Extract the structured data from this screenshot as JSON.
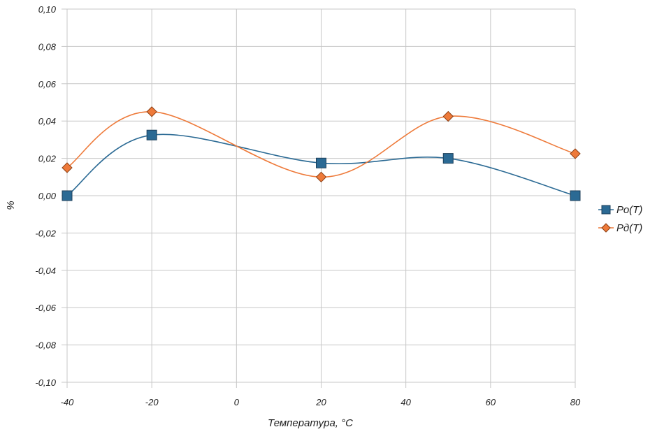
{
  "chart_data": {
    "type": "line",
    "xlabel": "Температура, °C",
    "ylabel": "%",
    "xlim": [
      -40,
      80
    ],
    "ylim": [
      -0.1,
      0.1
    ],
    "x_ticks": [
      -40,
      -20,
      0,
      20,
      40,
      60,
      80
    ],
    "x_tick_labels": [
      "-40",
      "-20",
      "0",
      "20",
      "40",
      "60",
      "80"
    ],
    "y_ticks": [
      0.1,
      0.08,
      0.06,
      0.04,
      0.02,
      0.0,
      -0.02,
      -0.04,
      -0.06,
      -0.08,
      -0.1
    ],
    "y_tick_labels": [
      "0,10",
      "0,08",
      "0,06",
      "0,04",
      "0,02",
      "0,00",
      "-0,02",
      "-0,04",
      "-0,06",
      "-0,08",
      "-0,10"
    ],
    "grid": true,
    "legend_position": "right",
    "smooth": true,
    "series": [
      {
        "name": "Ро(T)",
        "color": "#2b6a94",
        "marker": "square",
        "x": [
          -40,
          -20,
          20,
          50,
          80
        ],
        "y": [
          0.0,
          0.0325,
          0.0175,
          0.02,
          0.0
        ]
      },
      {
        "name": "Рд(T)",
        "color": "#ee7a3a",
        "marker": "diamond",
        "x": [
          -40,
          -20,
          20,
          50,
          80
        ],
        "y": [
          0.015,
          0.045,
          0.01,
          0.0425,
          0.0225
        ]
      }
    ]
  }
}
